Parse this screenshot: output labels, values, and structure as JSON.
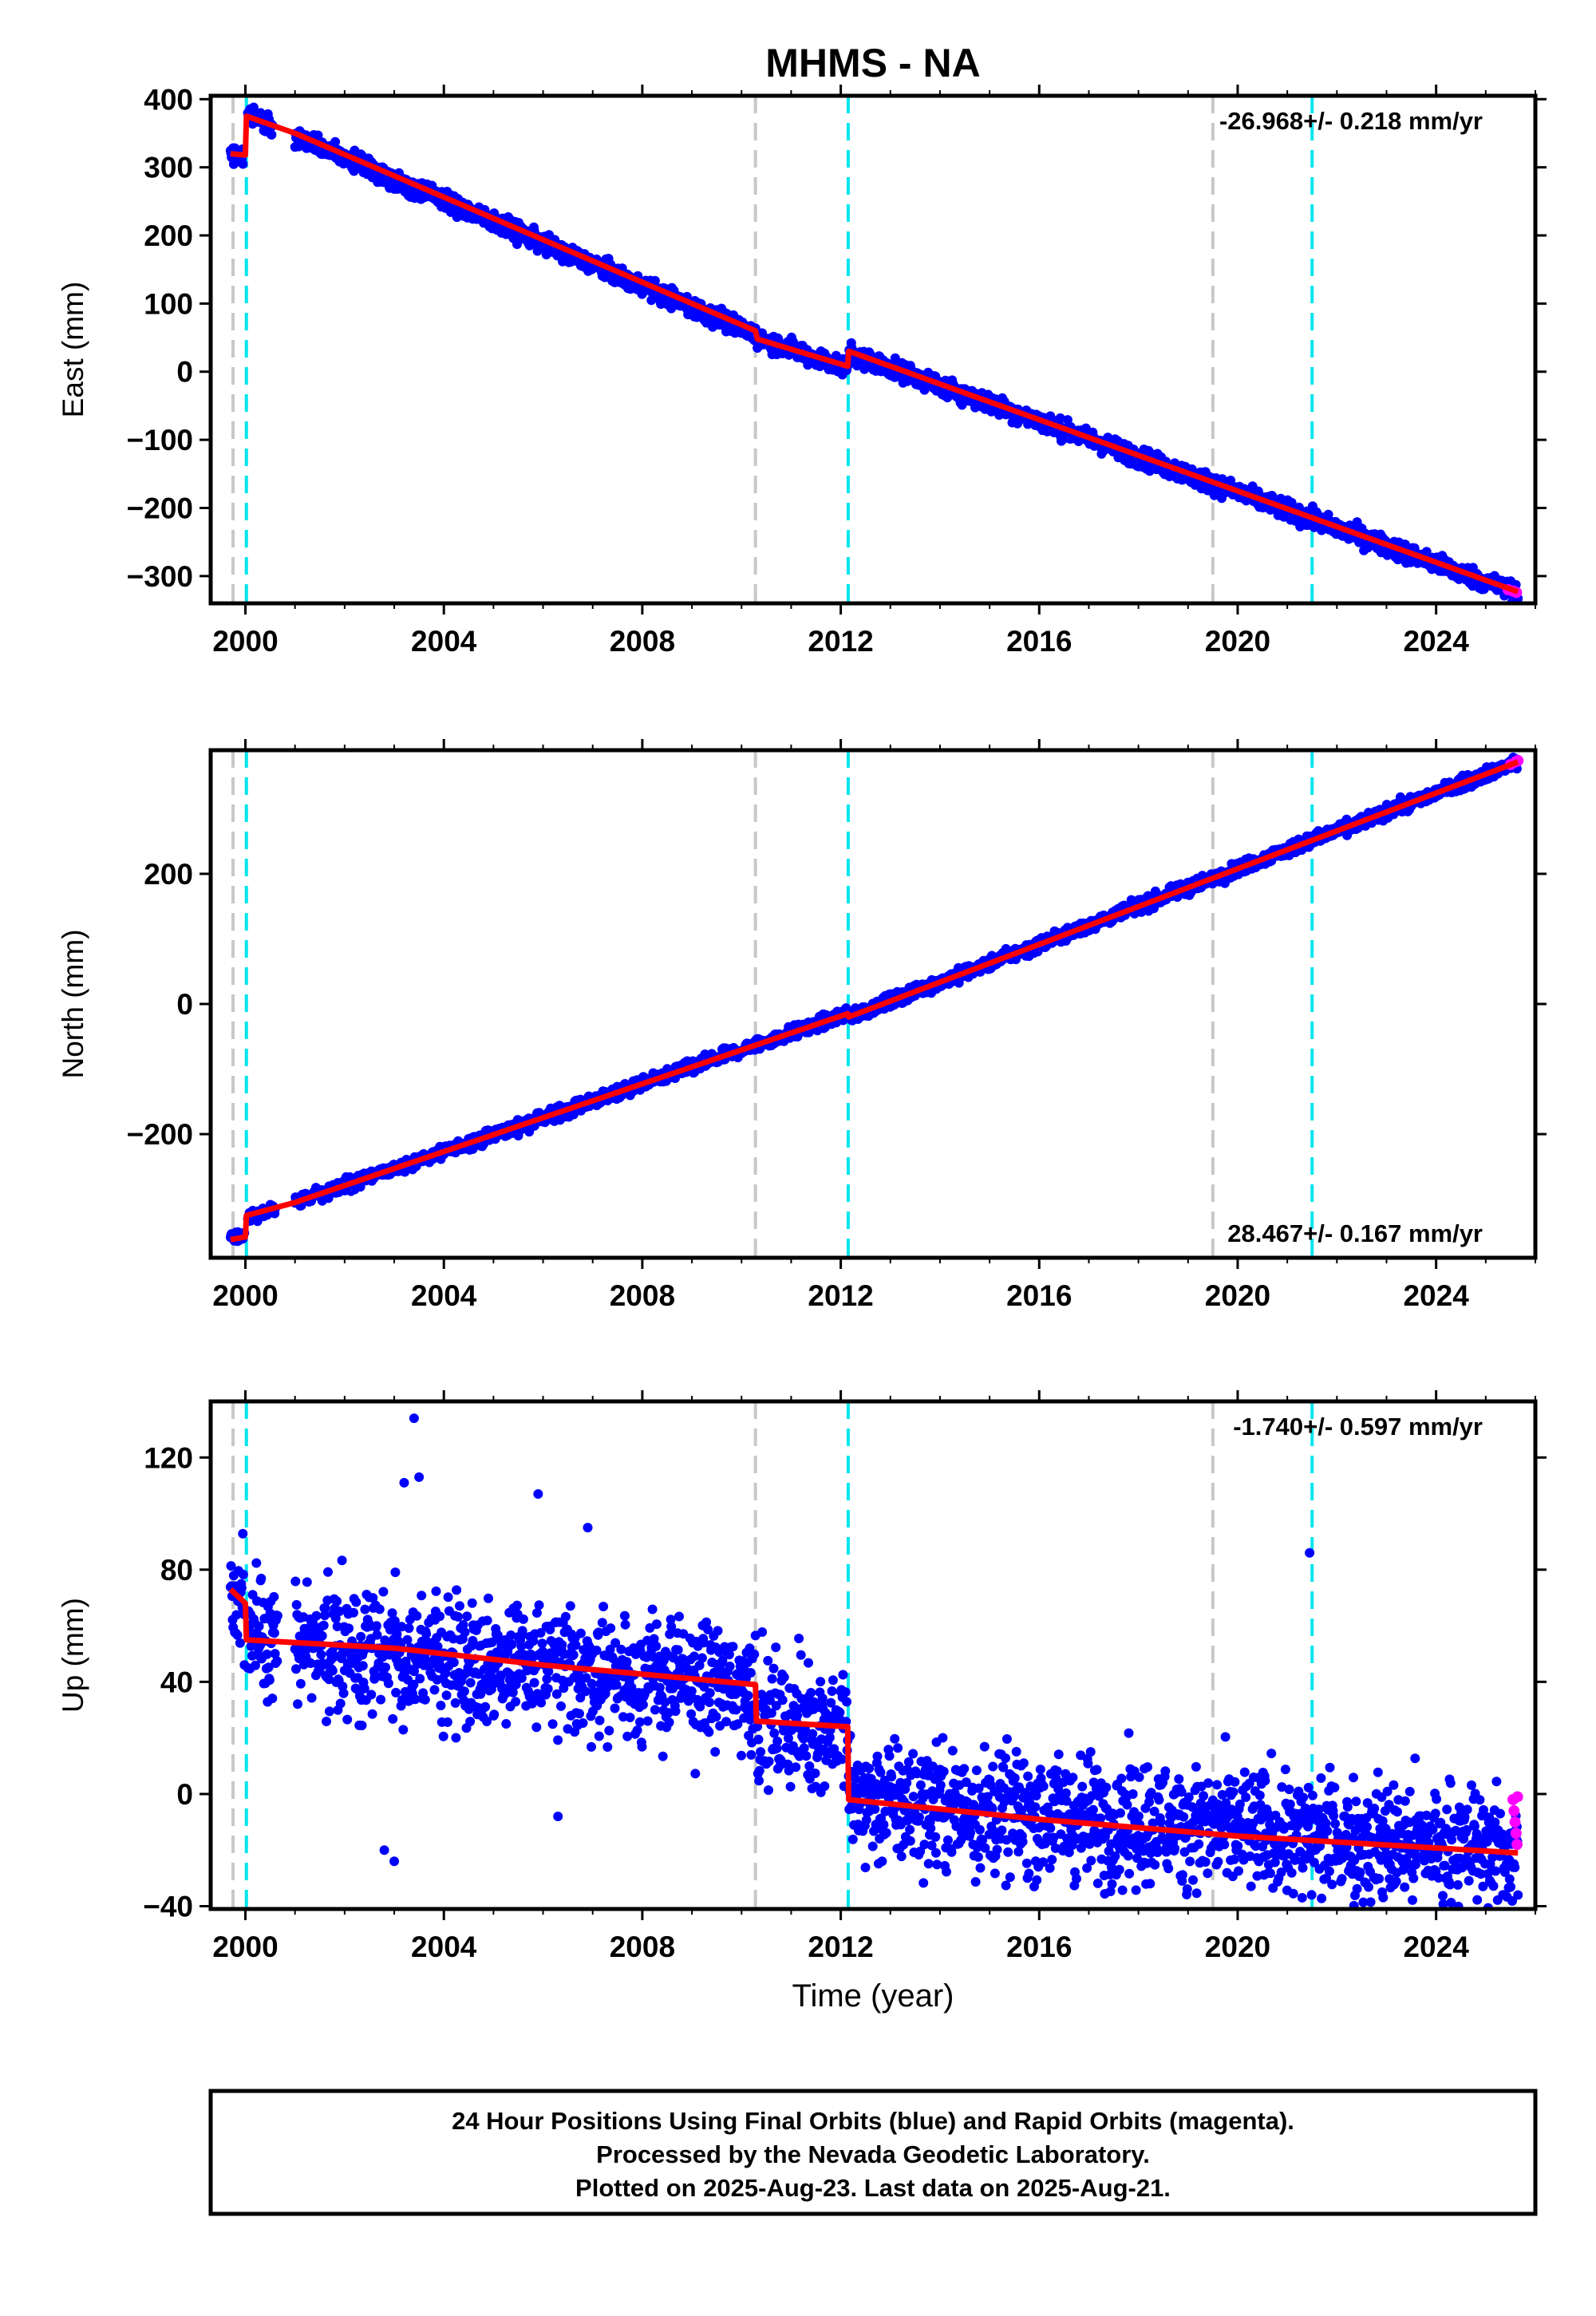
{
  "chart_data": {
    "title": "MHMS - NA",
    "xlabel": "Time (year)",
    "x_ticks": [
      2000,
      2004,
      2008,
      2012,
      2016,
      2020,
      2024
    ],
    "xlim": [
      1999.3,
      2026.0
    ],
    "colors": {
      "final_orbits": "#0000ff",
      "rapid_orbits": "#ff00ff",
      "model": "#ff0000",
      "gray_vline": "#c8c8c8",
      "cyan_vline": "#00e5ee",
      "frame": "#000000"
    },
    "vlines_gray": [
      1999.75,
      2010.28,
      2019.5
    ],
    "vlines_cyan": [
      2000.02,
      2012.15,
      2021.5
    ],
    "panels": [
      {
        "id": "east",
        "type": "scatter",
        "ylabel": "East (mm)",
        "ylim": [
          -340,
          405
        ],
        "y_ticks": [
          -300,
          -200,
          -100,
          0,
          100,
          200,
          300,
          400
        ],
        "rate_label": "-26.968+/- 0.218 mm/yr",
        "rate_position": "top-right",
        "noise": 7,
        "segments": [
          {
            "t0": 1999.7,
            "t1": 1999.95,
            "v0": 320,
            "v1": 315
          },
          {
            "t0": 2000.05,
            "t1": 2000.55,
            "v0": 380,
            "v1": 360
          },
          {
            "t0": 2001.0,
            "t1": 2010.28,
            "v0": 345,
            "v1": 55
          },
          {
            "t0": 2010.32,
            "t1": 2012.14,
            "v0": 50,
            "v1": 5
          },
          {
            "t0": 2012.16,
            "t1": 2025.65,
            "v0": 28,
            "v1": -325
          }
        ],
        "model": [
          [
            1999.7,
            320
          ],
          [
            2000.0,
            318
          ],
          [
            2000.02,
            375
          ],
          [
            2001.0,
            350
          ],
          [
            2010.28,
            60
          ],
          [
            2010.32,
            48
          ],
          [
            2012.14,
            8
          ],
          [
            2012.16,
            30
          ],
          [
            2025.65,
            -323
          ]
        ],
        "rapid": [
          [
            2025.45,
            -320
          ],
          [
            2025.55,
            -322
          ],
          [
            2025.62,
            -324
          ]
        ]
      },
      {
        "id": "north",
        "type": "scatter",
        "ylabel": "North (mm)",
        "ylim": [
          -390,
          390
        ],
        "y_ticks": [
          -200,
          0,
          200
        ],
        "rate_label": "28.467+/- 0.167 mm/yr",
        "rate_position": "bottom-right",
        "noise": 5,
        "segments": [
          {
            "t0": 1999.7,
            "t1": 1999.98,
            "v0": -360,
            "v1": -355
          },
          {
            "t0": 2000.05,
            "t1": 2000.6,
            "v0": -330,
            "v1": -315
          },
          {
            "t0": 2001.0,
            "t1": 2012.14,
            "v0": -305,
            "v1": -15
          },
          {
            "t0": 2012.16,
            "t1": 2025.65,
            "v0": -20,
            "v1": 372
          }
        ],
        "model": [
          [
            1999.7,
            -362
          ],
          [
            2000.0,
            -358
          ],
          [
            2000.02,
            -325
          ],
          [
            2001.0,
            -305
          ],
          [
            2012.14,
            -15
          ],
          [
            2012.16,
            -20
          ],
          [
            2025.65,
            372
          ]
        ],
        "rapid": [
          [
            2025.5,
            368
          ],
          [
            2025.6,
            372
          ],
          [
            2025.65,
            374
          ]
        ]
      },
      {
        "id": "up",
        "type": "scatter",
        "ylabel": "Up (mm)",
        "ylim": [
          -41,
          140
        ],
        "y_ticks": [
          -40,
          0,
          40,
          80,
          120
        ],
        "rate_label": "-1.740+/- 0.597 mm/yr",
        "rate_position": "top-right",
        "noise": 11,
        "segments": [
          {
            "t0": 1999.7,
            "t1": 1999.98,
            "v0": 72,
            "v1": 68
          },
          {
            "t0": 2000.05,
            "t1": 2000.65,
            "v0": 55,
            "v1": 55
          },
          {
            "t0": 2001.0,
            "t1": 2010.28,
            "v0": 53,
            "v1": 38
          },
          {
            "t0": 2010.32,
            "t1": 2012.14,
            "v0": 26,
            "v1": 24
          },
          {
            "t0": 2012.16,
            "t1": 2025.65,
            "v0": -2,
            "v1": -21
          }
        ],
        "model": [
          [
            1999.7,
            73
          ],
          [
            2000.0,
            68
          ],
          [
            2000.02,
            55
          ],
          [
            2003.0,
            52
          ],
          [
            2006.0,
            46
          ],
          [
            2010.28,
            39
          ],
          [
            2010.3,
            26
          ],
          [
            2012.14,
            24
          ],
          [
            2012.16,
            -2
          ],
          [
            2016.0,
            -9
          ],
          [
            2020.0,
            -15
          ],
          [
            2025.65,
            -21
          ]
        ],
        "rapid": [
          [
            2025.55,
            -2
          ],
          [
            2025.57,
            -6
          ],
          [
            2025.59,
            -10
          ],
          [
            2025.61,
            -14
          ],
          [
            2025.63,
            -18
          ],
          [
            2025.64,
            -1
          ]
        ],
        "outliers": [
          [
            2003.4,
            134
          ],
          [
            2003.5,
            113
          ],
          [
            2003.2,
            111
          ],
          [
            2005.9,
            107
          ],
          [
            2006.9,
            95
          ],
          [
            2021.45,
            86
          ],
          [
            2002.8,
            -20
          ],
          [
            2003.0,
            -24
          ],
          [
            2006.3,
            -8
          ],
          [
            2021.3,
            -37
          ]
        ]
      }
    ],
    "footer": [
      "24 Hour Positions Using Final Orbits (blue) and Rapid Orbits (magenta).",
      "Processed by the Nevada Geodetic Laboratory.",
      "Plotted on 2025-Aug-23. Last data on 2025-Aug-21."
    ]
  }
}
